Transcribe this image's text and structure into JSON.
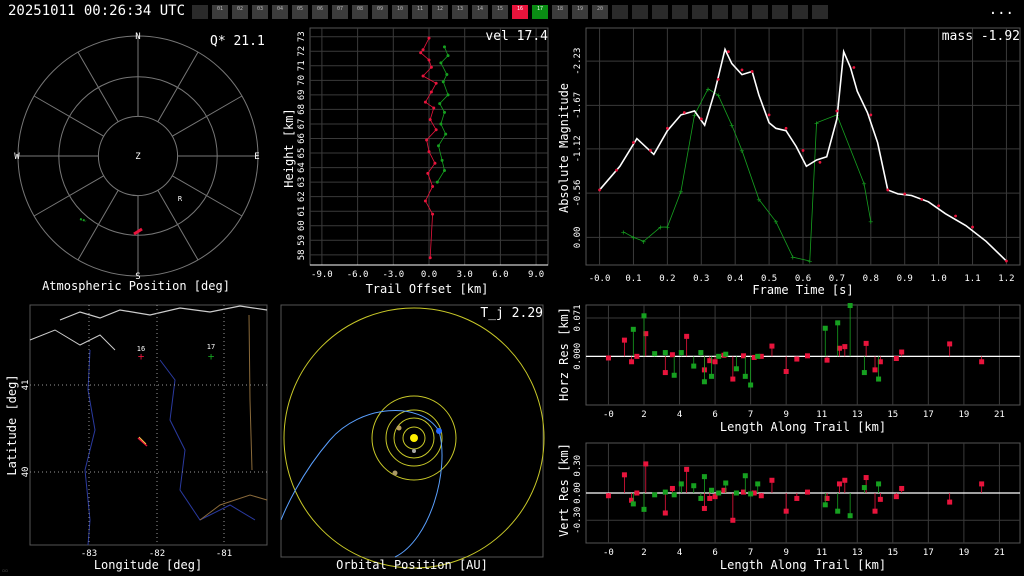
{
  "header": {
    "timestamp": "20251011 00:26:34 UTC",
    "menu": "...",
    "cameras": [
      {
        "id": "",
        "state": "off"
      },
      {
        "id": "01",
        "state": "on"
      },
      {
        "id": "02",
        "state": "on"
      },
      {
        "id": "03",
        "state": "on"
      },
      {
        "id": "04",
        "state": "on"
      },
      {
        "id": "05",
        "state": "on"
      },
      {
        "id": "06",
        "state": "on"
      },
      {
        "id": "07",
        "state": "on"
      },
      {
        "id": "08",
        "state": "on"
      },
      {
        "id": "09",
        "state": "on"
      },
      {
        "id": "10",
        "state": "on"
      },
      {
        "id": "11",
        "state": "on"
      },
      {
        "id": "12",
        "state": "on"
      },
      {
        "id": "13",
        "state": "on"
      },
      {
        "id": "14",
        "state": "on"
      },
      {
        "id": "15",
        "state": "on"
      },
      {
        "id": "16",
        "state": "red"
      },
      {
        "id": "17",
        "state": "green"
      },
      {
        "id": "18",
        "state": "on"
      },
      {
        "id": "19",
        "state": "on"
      },
      {
        "id": "20",
        "state": "on"
      },
      {
        "id": "",
        "state": "off"
      },
      {
        "id": "",
        "state": "off"
      },
      {
        "id": "",
        "state": "off"
      },
      {
        "id": "",
        "state": "off"
      },
      {
        "id": "",
        "state": "off"
      },
      {
        "id": "",
        "state": "off"
      },
      {
        "id": "",
        "state": "off"
      },
      {
        "id": "",
        "state": "off"
      },
      {
        "id": "",
        "state": "off"
      },
      {
        "id": "",
        "state": "off"
      },
      {
        "id": "",
        "state": "off"
      }
    ]
  },
  "colors": {
    "station16": "#e8143c",
    "station17": "#16a020",
    "grid": "#3a3a3a",
    "axis": "#ffffff",
    "fit": "#ffffff",
    "orbit": "#c8c828",
    "trail": "#ffffff"
  },
  "chart_data": [
    {
      "type": "scatter",
      "id": "atmospheric",
      "title": "Atmospheric Position [deg]",
      "corner_label": "Q* 21.1",
      "compass": [
        "N",
        "E",
        "S",
        "W",
        "Z"
      ],
      "radiant_label": "R"
    },
    {
      "type": "scatter",
      "id": "height",
      "corner_label": "vel 17.4",
      "xlabel": "Trail Offset [km]",
      "ylabel": "Height [km]",
      "xticks": [
        "-9.0",
        "-6.0",
        "-3.0",
        "0.0",
        "3.0",
        "6.0",
        "9.0"
      ],
      "yticks": [
        "58",
        "59",
        "60",
        "61",
        "62",
        "63",
        "64",
        "65",
        "66",
        "67",
        "68",
        "69",
        "70",
        "71",
        "72",
        "73"
      ],
      "xlim": [
        -10,
        10
      ],
      "ylim": [
        57.3,
        73.6
      ],
      "series": [
        {
          "name": "16",
          "x": [
            0.0,
            -0.5,
            -0.7,
            0.0,
            0.2,
            -0.5,
            0.6,
            0.2,
            -0.3,
            0.4,
            0.1,
            0.6,
            -0.2,
            0.0,
            0.5,
            -0.1,
            0.3,
            -0.3,
            0.3,
            0.1
          ],
          "y": [
            72.9,
            72.1,
            71.9,
            71.4,
            70.9,
            70.3,
            69.8,
            69.2,
            68.5,
            68.1,
            67.3,
            66.6,
            65.9,
            65.1,
            64.3,
            63.6,
            62.7,
            61.7,
            60.8,
            57.8
          ]
        },
        {
          "name": "17",
          "x": [
            1.3,
            1.6,
            1.0,
            1.5,
            1.2,
            1.6,
            0.9,
            1.3,
            1.0,
            1.4,
            0.8,
            1.1,
            1.3,
            0.7
          ],
          "y": [
            72.3,
            71.7,
            71.2,
            70.4,
            69.9,
            69.0,
            68.4,
            67.8,
            67.0,
            66.3,
            65.5,
            64.5,
            63.8,
            63.0
          ]
        }
      ]
    },
    {
      "type": "line",
      "id": "magnitude",
      "corner_label": "mass -1.92",
      "xlabel": "Frame Time [s]",
      "ylabel": "Absolute Magnitude",
      "xticks": [
        "-0.0",
        "0.1",
        "0.2",
        "0.3",
        "0.4",
        "0.5",
        "0.6",
        "0.7",
        "0.8",
        "0.9",
        "1.0",
        "1.1",
        "1.2"
      ],
      "yticks": [
        "-2.23",
        "-1.67",
        "-1.12",
        "-0.56",
        "0.00"
      ],
      "xlim": [
        -0.04,
        1.24
      ],
      "ylim": [
        0.35,
        -2.65
      ],
      "series": [
        {
          "name": "fit",
          "x": [
            0.0,
            0.06,
            0.11,
            0.16,
            0.2,
            0.24,
            0.28,
            0.31,
            0.34,
            0.37,
            0.39,
            0.42,
            0.45,
            0.47,
            0.5,
            0.52,
            0.55,
            0.58,
            0.61,
            0.64,
            0.67,
            0.7,
            0.72,
            0.74,
            0.76,
            0.79,
            0.82,
            0.85,
            0.88,
            0.92,
            0.97,
            1.02,
            1.08,
            1.14,
            1.2
          ],
          "y": [
            -0.6,
            -0.9,
            -1.25,
            -1.05,
            -1.35,
            -1.55,
            -1.6,
            -1.42,
            -1.85,
            -2.38,
            -2.2,
            -2.06,
            -2.1,
            -1.8,
            -1.45,
            -1.38,
            -1.35,
            -1.15,
            -0.9,
            -0.98,
            -1.02,
            -1.5,
            -2.35,
            -2.15,
            -1.85,
            -1.58,
            -1.2,
            -0.6,
            -0.55,
            -0.53,
            -0.45,
            -0.3,
            -0.15,
            0.05,
            0.3
          ]
        },
        {
          "name": "16",
          "x": [
            0.0,
            0.05,
            0.1,
            0.15,
            0.2,
            0.25,
            0.3,
            0.35,
            0.38,
            0.42,
            0.45,
            0.5,
            0.55,
            0.6,
            0.65,
            0.7,
            0.75,
            0.8,
            0.85,
            0.9,
            0.95,
            1.0,
            1.05,
            1.1,
            1.2
          ],
          "y": [
            -0.6,
            -0.85,
            -1.2,
            -1.1,
            -1.38,
            -1.58,
            -1.5,
            -2.0,
            -2.35,
            -2.12,
            -2.1,
            -1.55,
            -1.38,
            -1.1,
            -0.95,
            -1.6,
            -2.15,
            -1.55,
            -0.6,
            -0.55,
            -0.48,
            -0.4,
            -0.27,
            -0.13,
            0.3
          ]
        },
        {
          "name": "17",
          "x": [
            0.07,
            0.1,
            0.13,
            0.18,
            0.2,
            0.24,
            0.28,
            0.32,
            0.35,
            0.39,
            0.42,
            0.47,
            0.52,
            0.57,
            0.62,
            0.64,
            0.7,
            0.78,
            0.8
          ],
          "y": [
            -0.07,
            0.0,
            0.05,
            -0.13,
            -0.13,
            -0.58,
            -1.55,
            -1.88,
            -1.8,
            -1.42,
            -1.1,
            -0.48,
            -0.2,
            0.25,
            0.3,
            -1.45,
            -1.55,
            -0.68,
            -0.2
          ]
        }
      ]
    },
    {
      "type": "scatter",
      "id": "horz-res",
      "xlabel": "Length Along Trail [km]",
      "ylabel": "Horz Res [km]",
      "xticks": [
        "-0",
        "2",
        "4",
        "6",
        "7",
        "9",
        "11",
        "13",
        "15",
        "17",
        "19",
        "21"
      ],
      "yticks": [
        "0.071",
        "0.000"
      ],
      "xlim": [
        -1.2,
        22
      ],
      "ylim": [
        -0.09,
        0.095
      ],
      "series": [
        {
          "name": "16",
          "x": [
            0,
            0.9,
            1.3,
            1.6,
            2.1,
            3.2,
            3.6,
            4.4,
            5.4,
            5.7,
            6.0,
            6.5,
            7.0,
            7.6,
            8.2,
            8.6,
            9.2,
            10.0,
            10.6,
            11.2,
            12.3,
            13.0,
            13.3,
            14.5,
            15.0,
            15.3,
            16.2,
            16.5,
            19.2,
            21.0
          ],
          "y": [
            -0.003,
            0.03,
            -0.01,
            0.0,
            0.042,
            -0.03,
            0.003,
            0.037,
            -0.025,
            -0.008,
            -0.01,
            0.002,
            -0.042,
            0.001,
            -0.002,
            0.0,
            0.019,
            -0.028,
            -0.005,
            0.001,
            -0.007,
            0.015,
            0.018,
            0.024,
            -0.025,
            -0.01,
            -0.004,
            0.008,
            0.023,
            -0.01
          ]
        },
        {
          "name": "17",
          "x": [
            1.4,
            2.0,
            2.6,
            3.2,
            3.7,
            4.1,
            4.8,
            5.2,
            5.4,
            5.8,
            6.2,
            6.6,
            7.2,
            7.7,
            8.0,
            8.4,
            12.2,
            12.9,
            13.6,
            14.4,
            15.2
          ],
          "y": [
            0.05,
            0.075,
            0.005,
            0.007,
            -0.035,
            0.007,
            -0.018,
            0.007,
            -0.047,
            -0.037,
            0.0,
            0.004,
            -0.023,
            -0.037,
            -0.053,
            0.0,
            0.052,
            0.062,
            0.094,
            -0.03,
            -0.042
          ]
        }
      ]
    },
    {
      "type": "scatter",
      "id": "vert-res",
      "xlabel": "Length Along Trail [km]",
      "ylabel": "Vert Res [km]",
      "xticks": [
        "-0",
        "2",
        "4",
        "6",
        "7",
        "9",
        "11",
        "13",
        "15",
        "17",
        "19",
        "21"
      ],
      "yticks": [
        "0.30",
        "0.00",
        "-0.30"
      ],
      "xlim": [
        -1.2,
        22
      ],
      "ylim": [
        -0.55,
        0.55
      ],
      "series": [
        {
          "name": "16",
          "x": [
            0,
            0.9,
            1.3,
            1.6,
            2.1,
            3.2,
            3.6,
            4.4,
            5.4,
            5.7,
            6.0,
            6.5,
            7.0,
            7.6,
            8.2,
            8.6,
            9.2,
            10.0,
            10.6,
            11.2,
            12.3,
            13.0,
            13.3,
            14.5,
            15.0,
            15.3,
            16.2,
            16.5,
            19.2,
            21.0
          ],
          "y": [
            -0.03,
            0.2,
            -0.08,
            0.0,
            0.32,
            -0.22,
            0.05,
            0.26,
            -0.17,
            -0.06,
            -0.04,
            0.03,
            -0.3,
            0.01,
            0.0,
            -0.03,
            0.14,
            -0.2,
            -0.06,
            0.01,
            -0.06,
            0.1,
            0.14,
            0.17,
            -0.2,
            -0.07,
            -0.04,
            0.05,
            -0.1,
            0.1
          ]
        },
        {
          "name": "17",
          "x": [
            1.4,
            2.0,
            2.6,
            3.2,
            3.7,
            4.1,
            4.8,
            5.2,
            5.4,
            5.8,
            6.2,
            6.6,
            7.2,
            7.7,
            8.0,
            8.4,
            12.2,
            12.9,
            13.6,
            14.4,
            15.2
          ],
          "y": [
            -0.12,
            -0.18,
            -0.02,
            0.01,
            -0.02,
            0.1,
            0.08,
            -0.06,
            0.18,
            0.03,
            0.0,
            0.11,
            0.0,
            0.19,
            -0.01,
            0.1,
            -0.13,
            -0.2,
            -0.25,
            0.06,
            0.1
          ]
        }
      ]
    },
    {
      "type": "scatter",
      "id": "ground-map",
      "xlabel": "Longitude [deg]",
      "ylabel": "Latitude [deg]",
      "xticks": [
        "-83",
        "-82",
        "-81"
      ],
      "yticks": [
        "41",
        "40"
      ],
      "station_labels": [
        "16",
        "17"
      ]
    },
    {
      "type": "scatter",
      "id": "orbit",
      "xlabel": "Orbital Position [AU]",
      "corner_label": "T_j 2.29"
    }
  ]
}
